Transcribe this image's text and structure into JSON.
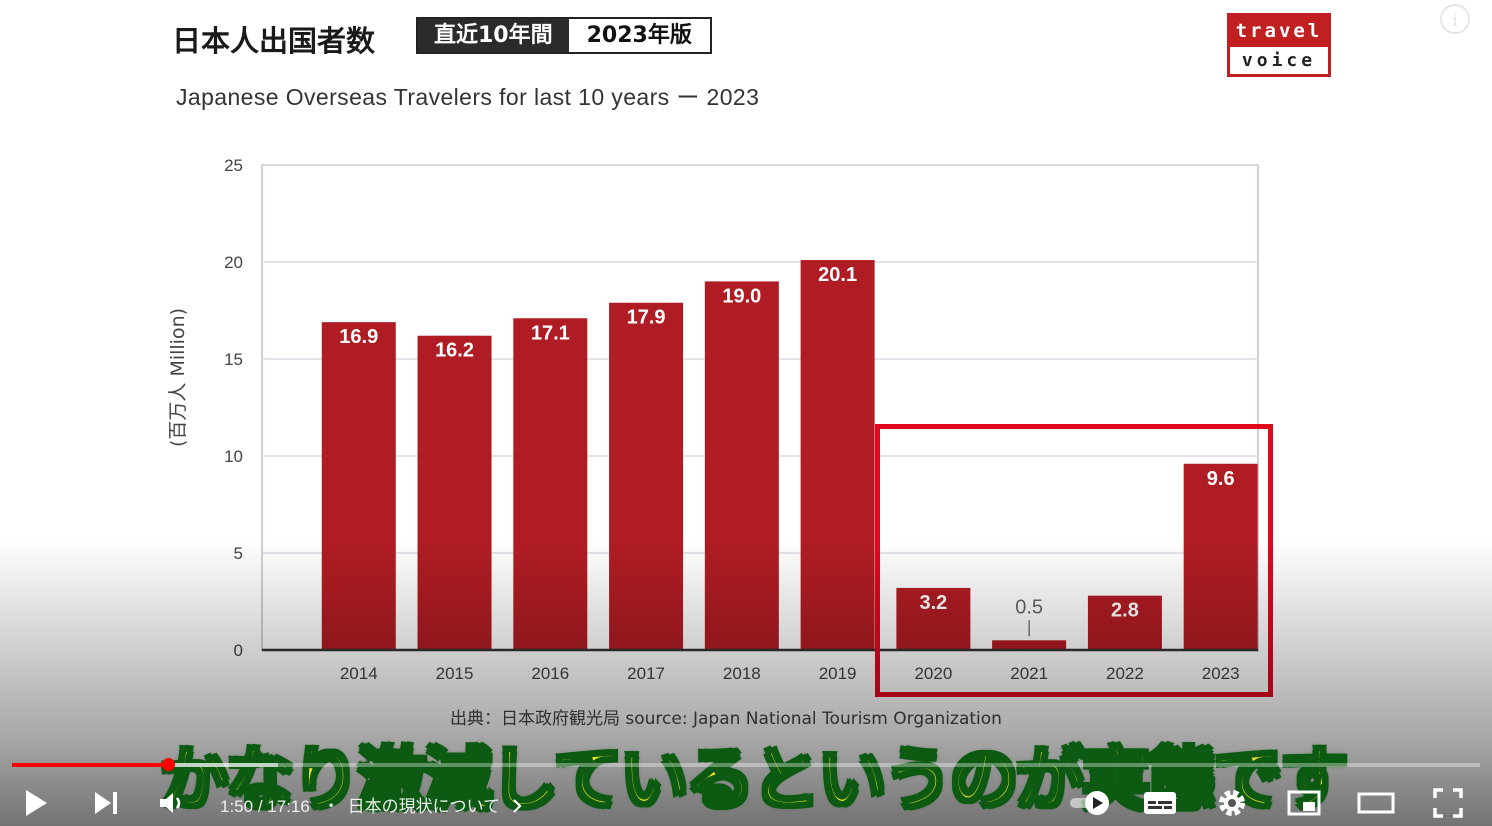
{
  "slide": {
    "title_jp": "日本人出国者数",
    "tag_period": "直近10年間",
    "tag_edition": "2023年版",
    "title_en": "Japanese Overseas Travelers for last 10 years  ー  2023",
    "source": "出典：日本政府観光局  source: Japan National Tourism Organization"
  },
  "logo": {
    "top": "travel",
    "bottom": "voice"
  },
  "chart_data": {
    "type": "bar",
    "title": "Japanese Overseas Travelers for last 10 years  ー  2023",
    "ylabel": "(百万人 Million)",
    "xlabel": "",
    "ylim": [
      0,
      25
    ],
    "yticks": [
      0,
      5,
      10,
      15,
      20,
      25
    ],
    "categories": [
      "2014",
      "2015",
      "2016",
      "2017",
      "2018",
      "2019",
      "2020",
      "2021",
      "2022",
      "2023"
    ],
    "values": [
      16.9,
      16.2,
      17.1,
      17.9,
      19.0,
      20.1,
      3.2,
      0.5,
      2.8,
      9.6
    ],
    "labels": [
      "16.9",
      "16.2",
      "17.1",
      "17.9",
      "19.0",
      "20.1",
      "3.2",
      "0.5",
      "2.8",
      "9.6"
    ],
    "bar_color": "#b01c23",
    "highlight_categories": [
      "2020",
      "2021",
      "2022",
      "2023"
    ],
    "highlight_color": "#e1081e",
    "grid": true
  },
  "caption": {
    "text": "かなり激減しているというのが実態です"
  },
  "player": {
    "played_fraction": 0.106,
    "buffered_fraction": 0.075,
    "current_time": "1:50",
    "duration": "17:16",
    "chapter": "日本の現状について",
    "chapter_prefix": "・",
    "time_separator": "/",
    "accent_color": "#ff0000",
    "icons": [
      "play-icon",
      "next-icon",
      "volume-icon",
      "chevron-right-icon",
      "autoplay-icon",
      "subtitles-icon",
      "settings-icon",
      "miniplayer-icon",
      "theater-icon",
      "fullscreen-icon"
    ]
  }
}
